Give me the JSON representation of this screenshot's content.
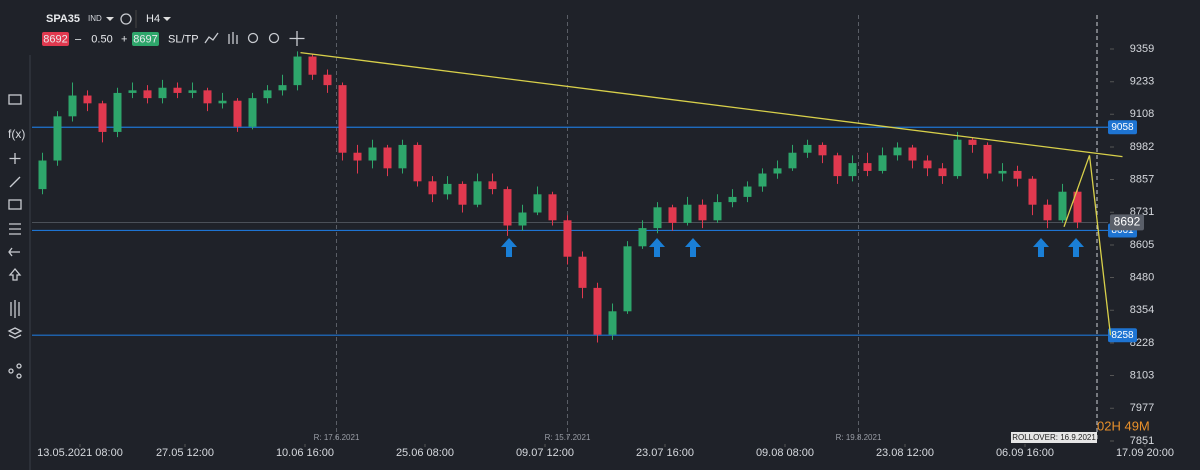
{
  "toolbar": {
    "symbol": "SPA35",
    "market": "IND",
    "timeframe": "H4",
    "sell": "8692",
    "lot": "0.50",
    "buy": "8697",
    "sltp": "SL/TP",
    "fx": "f(x)"
  },
  "chart_data": {
    "type": "candlestick",
    "open": [
      8820,
      8930,
      9100,
      9180,
      9150,
      9040,
      9190,
      9200,
      9170,
      9210,
      9190,
      9200,
      9150,
      9160,
      9060,
      9170,
      9200,
      9220,
      9330,
      9260,
      9220,
      8960,
      8930,
      8980,
      8900,
      8990,
      8850,
      8800,
      8840,
      8760,
      8850,
      8820,
      8680,
      8730,
      8800,
      8700,
      8560,
      8440,
      8260,
      8350,
      8600,
      8670,
      8750,
      8690,
      8760,
      8700,
      8770,
      8790,
      8830,
      8880,
      8900,
      8960,
      8990,
      8950,
      8870,
      8920,
      8890,
      8950,
      8980,
      8930,
      8900,
      8870,
      9010,
      8990,
      8880,
      8890,
      8860,
      8760,
      8700,
      8810
    ],
    "high": [
      8960,
      9120,
      9230,
      9200,
      9160,
      9210,
      9230,
      9220,
      9240,
      9230,
      9230,
      9210,
      9190,
      9170,
      9190,
      9220,
      9260,
      9350,
      9340,
      9280,
      9230,
      8990,
      9010,
      8990,
      9010,
      9000,
      8870,
      8870,
      8850,
      8880,
      8880,
      8830,
      8760,
      8830,
      8810,
      8720,
      8580,
      8460,
      8380,
      8620,
      8700,
      8770,
      8760,
      8790,
      8780,
      8800,
      8820,
      8850,
      8900,
      8930,
      8990,
      9010,
      9000,
      8960,
      8950,
      8960,
      8980,
      9000,
      8990,
      8950,
      8920,
      9040,
      9020,
      9000,
      8920,
      8910,
      8870,
      8780,
      8840,
      8820
    ],
    "low": [
      8800,
      8910,
      9080,
      9120,
      9000,
      9020,
      9170,
      9150,
      9150,
      9170,
      9170,
      9120,
      9130,
      9040,
      9050,
      9150,
      9180,
      9200,
      9240,
      9190,
      8930,
      8880,
      8900,
      8870,
      8880,
      8830,
      8770,
      8780,
      8730,
      8750,
      8800,
      8640,
      8660,
      8720,
      8680,
      8530,
      8400,
      8230,
      8240,
      8340,
      8590,
      8650,
      8660,
      8680,
      8670,
      8690,
      8750,
      8770,
      8810,
      8860,
      8890,
      8940,
      8920,
      8840,
      8850,
      8870,
      8880,
      8930,
      8900,
      8870,
      8840,
      8860,
      8960,
      8860,
      8850,
      8830,
      8720,
      8670,
      8690,
      8670
    ],
    "close": [
      8930,
      9100,
      9180,
      9150,
      9040,
      9190,
      9200,
      9170,
      9210,
      9190,
      9200,
      9150,
      9160,
      9060,
      9170,
      9200,
      9220,
      9330,
      9260,
      9220,
      8960,
      8930,
      8980,
      8900,
      8990,
      8850,
      8800,
      8840,
      8760,
      8850,
      8820,
      8680,
      8730,
      8800,
      8700,
      8560,
      8440,
      8260,
      8350,
      8600,
      8670,
      8750,
      8690,
      8760,
      8700,
      8770,
      8790,
      8830,
      8880,
      8900,
      8960,
      8990,
      8950,
      8870,
      8920,
      8890,
      8950,
      8980,
      8930,
      8900,
      8870,
      9010,
      8990,
      8880,
      8890,
      8860,
      8760,
      8700,
      8810,
      8692
    ],
    "up_color": "#2ea66b",
    "down_color": "#e0394f",
    "xlim": [
      0,
      75
    ],
    "xticks": [
      {
        "value": 3,
        "label": "13.05.2021 08:00"
      },
      {
        "value": 10,
        "label": "27.05 12:00"
      },
      {
        "value": 18,
        "label": "10.06 16:00"
      },
      {
        "value": 26,
        "label": "25.06 08:00"
      },
      {
        "value": 34,
        "label": "09.07 12:00"
      },
      {
        "value": 42,
        "label": "23.07 16:00"
      },
      {
        "value": 50,
        "label": "09.08 08:00"
      },
      {
        "value": 58,
        "label": "23.08 12:00"
      },
      {
        "value": 66,
        "label": "06.09 16:00"
      },
      {
        "value": 74,
        "label": "17.09 20:00"
      }
    ],
    "ylim": [
      7851,
      9359
    ],
    "yticks": [
      9359,
      9233,
      9108,
      8982,
      8857,
      8731,
      8605,
      8480,
      8354,
      8228,
      8103,
      7977,
      7851
    ],
    "levels": [
      {
        "value": 9058,
        "color": "#1e74d2"
      },
      {
        "value": 8661,
        "color": "#1e74d2"
      },
      {
        "value": 8258,
        "color": "#1e74d2"
      }
    ],
    "current_price": {
      "value": 8692,
      "color": "#5a5f69"
    },
    "trendlines": [
      {
        "x": [
          17.7,
          72.5
        ],
        "y": [
          9345,
          8945
        ],
        "color": "#d8d04a"
      },
      {
        "x": [
          68.6,
          70.3,
          71.7
        ],
        "y": [
          8675,
          8950,
          8258
        ],
        "color": "#d8d04a"
      }
    ],
    "markers": [
      {
        "x": 20.1,
        "label": "R: 17.6.2021"
      },
      {
        "x": 35.5,
        "label": "R: 15.7.2021"
      },
      {
        "x": 54.9,
        "label": "R: 19.8.2021"
      },
      {
        "x": 70.8,
        "label": "ROLLOVER: 16.9.2021"
      }
    ],
    "countdown": "02H 49M"
  }
}
